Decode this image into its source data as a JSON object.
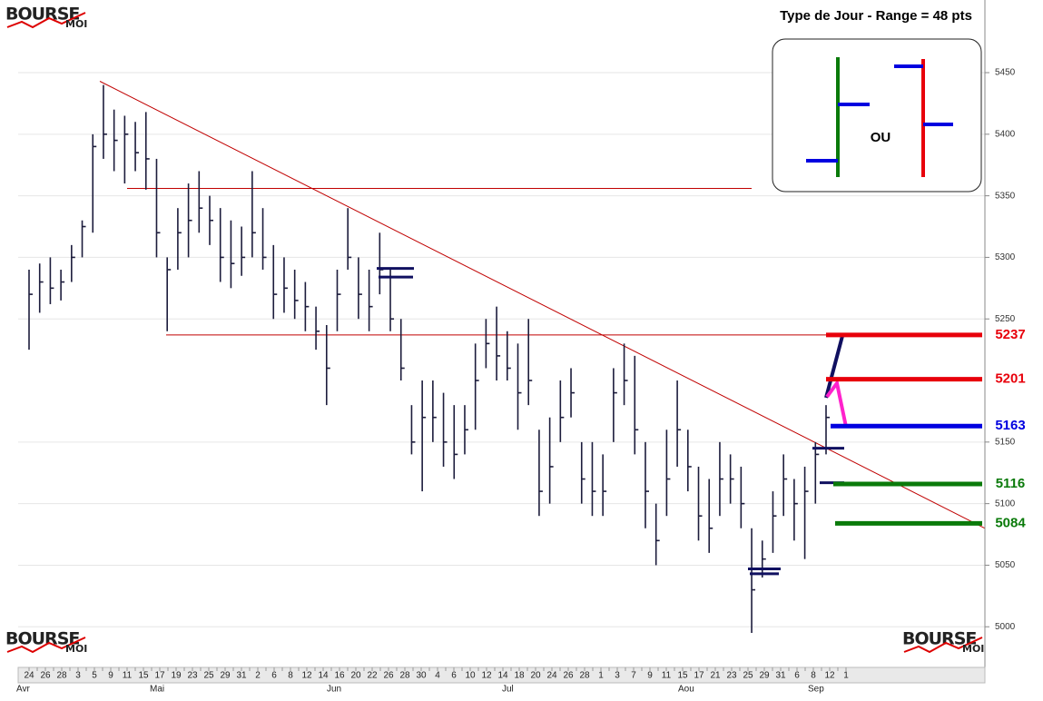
{
  "logo": {
    "text": "BOURSE",
    "sub": "MOI"
  },
  "inset": {
    "title": "Type de Jour - Range = 48 pts",
    "separator": "OU"
  },
  "chart_data": {
    "type": "ohlc",
    "ylim": [
      4967,
      5509
    ],
    "yticks": [
      5000,
      5050,
      5100,
      5150,
      5250,
      5300,
      5350,
      5400,
      5450
    ],
    "grid": true,
    "bar_color": "#1c1c3c",
    "x_tick_labels": [
      "24",
      "26",
      "28",
      "3",
      "5",
      "9",
      "11",
      "15",
      "17",
      "19",
      "23",
      "25",
      "29",
      "31",
      "2",
      "6",
      "8",
      "12",
      "14",
      "16",
      "20",
      "22",
      "26",
      "28",
      "30",
      "4",
      "6",
      "10",
      "12",
      "14",
      "18",
      "20",
      "24",
      "26",
      "28",
      "1",
      "3",
      "7",
      "9",
      "11",
      "15",
      "17",
      "21",
      "23",
      "25",
      "29",
      "31",
      "6",
      "8",
      "12",
      "1"
    ],
    "month_labels": [
      "Avr",
      "Mai",
      "Jun",
      "Jul",
      "Aou",
      "Sep"
    ],
    "high": [
      5290,
      5295,
      5300,
      5290,
      5310,
      5330,
      5400,
      5440,
      5420,
      5415,
      5410,
      5418,
      5380,
      5300,
      5340,
      5360,
      5370,
      5350,
      5340,
      5330,
      5325,
      5370,
      5340,
      5310,
      5300,
      5290,
      5280,
      5260,
      5245,
      5290,
      5340,
      5300,
      5290,
      5320,
      5290,
      5250,
      5180,
      5200,
      5200,
      5190,
      5180,
      5180,
      5230,
      5250,
      5260,
      5240,
      5230,
      5250,
      5160,
      5170,
      5200,
      5210,
      5150,
      5150,
      5140,
      5210,
      5230,
      5220,
      5150,
      5100,
      5160,
      5200,
      5160,
      5130,
      5120,
      5150,
      5140,
      5130,
      5080,
      5070,
      5110,
      5140,
      5120,
      5130,
      5150,
      5180
    ],
    "low": [
      5225,
      5255,
      5262,
      5265,
      5280,
      5300,
      5320,
      5380,
      5370,
      5360,
      5370,
      5355,
      5300,
      5240,
      5290,
      5300,
      5320,
      5310,
      5280,
      5275,
      5285,
      5300,
      5290,
      5250,
      5255,
      5250,
      5240,
      5225,
      5180,
      5240,
      5290,
      5250,
      5240,
      5270,
      5240,
      5200,
      5140,
      5110,
      5150,
      5130,
      5120,
      5140,
      5160,
      5210,
      5200,
      5200,
      5160,
      5180,
      5090,
      5100,
      5150,
      5170,
      5100,
      5090,
      5090,
      5150,
      5180,
      5140,
      5080,
      5050,
      5090,
      5130,
      5110,
      5070,
      5060,
      5090,
      5100,
      5080,
      4995,
      5040,
      5060,
      5090,
      5070,
      5055,
      5100,
      5140
    ],
    "close": [
      5270,
      5280,
      5275,
      5280,
      5300,
      5325,
      5390,
      5400,
      5395,
      5400,
      5385,
      5380,
      5320,
      5290,
      5320,
      5330,
      5340,
      5330,
      5300,
      5295,
      5300,
      5320,
      5300,
      5270,
      5275,
      5265,
      5260,
      5240,
      5210,
      5270,
      5300,
      5270,
      5260,
      5290,
      5250,
      5210,
      5150,
      5170,
      5170,
      5150,
      5140,
      5160,
      5200,
      5230,
      5220,
      5210,
      5190,
      5200,
      5110,
      5130,
      5170,
      5190,
      5120,
      5110,
      5110,
      5190,
      5200,
      5160,
      5110,
      5070,
      5120,
      5160,
      5130,
      5090,
      5080,
      5120,
      5120,
      5100,
      5030,
      5055,
      5090,
      5120,
      5100,
      5110,
      5140,
      5170
    ],
    "trend_color": "#c00000",
    "trend_line": [
      5443,
      5080
    ],
    "horizontal_lines": [
      5356,
      5237
    ],
    "markers": [
      5291,
      5284,
      5047,
      5043,
      5145,
      5117
    ],
    "marker_color": "#101060",
    "levels": [
      {
        "value": 5237,
        "color": "#e8000b"
      },
      {
        "value": 5201,
        "color": "#e8000b"
      },
      {
        "value": 5163,
        "color": "#0000e0"
      },
      {
        "value": 5116,
        "color": "#0a7a0a"
      },
      {
        "value": 5084,
        "color": "#0a7a0a"
      }
    ]
  }
}
